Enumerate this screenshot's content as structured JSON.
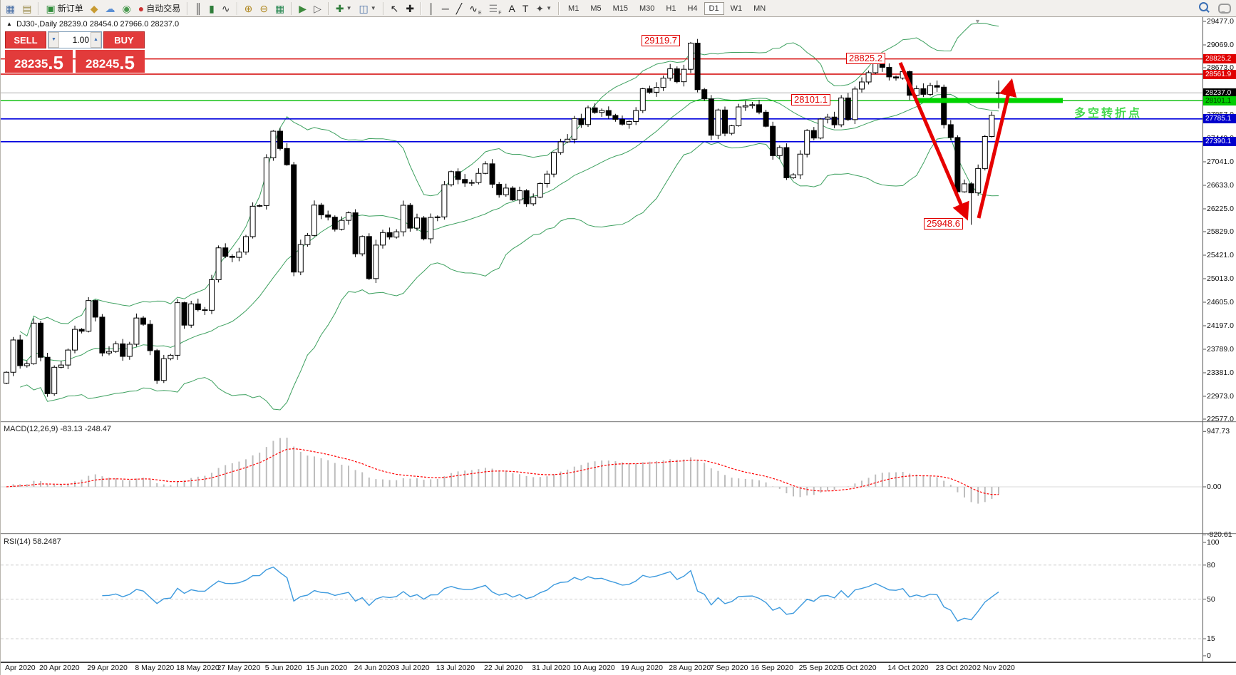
{
  "toolbar": {
    "new_order": "新订单",
    "autotrading": "自动交易",
    "timeframes": [
      "M1",
      "M5",
      "M15",
      "M30",
      "H1",
      "H4",
      "D1",
      "W1",
      "MN"
    ],
    "active_timeframe": "D1",
    "icons": [
      {
        "name": "new-chart-icon",
        "glyph": "▦",
        "color": "#4a6fa5"
      },
      {
        "name": "profiles-icon",
        "glyph": "▤",
        "color": "#9a8a4a"
      },
      {
        "name": "sep"
      },
      {
        "name": "new-order-icon",
        "glyph": "▣",
        "color": "#2f8d3a",
        "label_key": "new_order"
      },
      {
        "name": "trumpet-icon",
        "glyph": "◆",
        "color": "#c89b32"
      },
      {
        "name": "community-icon",
        "glyph": "☁",
        "color": "#5b8fd4"
      },
      {
        "name": "signals-icon",
        "glyph": "◉",
        "color": "#4a9a50"
      },
      {
        "name": "autotrading-icon",
        "glyph": "●",
        "color": "#cc3333",
        "label_key": "autotrading"
      },
      {
        "name": "sep"
      },
      {
        "name": "bar-chart-icon",
        "glyph": "║",
        "color": "#3a3a3a"
      },
      {
        "name": "candlestick-icon",
        "glyph": "▮",
        "color": "#2f7d3a"
      },
      {
        "name": "line-chart-icon",
        "glyph": "∿",
        "color": "#3a3a3a"
      },
      {
        "name": "sep"
      },
      {
        "name": "zoom-in-icon",
        "glyph": "⊕",
        "color": "#b08820"
      },
      {
        "name": "zoom-out-icon",
        "glyph": "⊖",
        "color": "#b08820"
      },
      {
        "name": "tile-windows-icon",
        "glyph": "▦",
        "color": "#2e8b57"
      },
      {
        "name": "sep"
      },
      {
        "name": "auto-scroll-icon",
        "glyph": "▶",
        "color": "#3c8a3c"
      },
      {
        "name": "chart-shift-icon",
        "glyph": "▷",
        "color": "#555555"
      },
      {
        "name": "sep"
      },
      {
        "name": "indicators-icon",
        "glyph": "✚",
        "color": "#2f7d3a",
        "dropdown": true
      },
      {
        "name": "templates-icon",
        "glyph": "◫",
        "color": "#4a6fa5",
        "dropdown": true
      },
      {
        "name": "sep"
      },
      {
        "name": "cursor-icon",
        "glyph": "↖",
        "color": "#222222"
      },
      {
        "name": "crosshair-icon",
        "glyph": "✚",
        "color": "#222222"
      },
      {
        "name": "sep"
      },
      {
        "name": "vertical-line-icon",
        "glyph": "│",
        "color": "#222222"
      },
      {
        "name": "horizontal-line-icon",
        "glyph": "─",
        "color": "#222222"
      },
      {
        "name": "trendline-icon",
        "glyph": "╱",
        "color": "#222222"
      },
      {
        "name": "waves-tool-icon",
        "glyph": "∿",
        "color": "#222222",
        "sub": "E"
      },
      {
        "name": "fibonacci-icon",
        "glyph": "☰",
        "color": "#888888",
        "sub": "F"
      },
      {
        "name": "text-icon",
        "glyph": "A",
        "color": "#222222"
      },
      {
        "name": "text-label-icon",
        "glyph": "T",
        "color": "#222222"
      },
      {
        "name": "arrows-icon",
        "glyph": "✦",
        "color": "#444444",
        "dropdown": true
      }
    ]
  },
  "symbol_bar": {
    "collapse_icon": "▲",
    "title": "DJ30-,Daily",
    "ohlc": "28239.0 28454.0 27966.0 28237.0"
  },
  "one_click": {
    "sell_label": "SELL",
    "buy_label": "BUY",
    "volume": "1.00",
    "sell_price_main": "28235",
    "sell_price_frac": ".5",
    "buy_price_main": "28245",
    "buy_price_frac": ".5"
  },
  "annotations": {
    "high_label": "29119.7",
    "peak_label": "28825.2",
    "pivot_label": "28101.1",
    "low_label": "25948.6",
    "pivot_text": "多空转折点"
  },
  "macd": {
    "label": "MACD(12,26,9) -83.13 -248.47",
    "ticks": [
      {
        "v": 947.73,
        "t": "947.73"
      },
      {
        "v": 0,
        "t": "0.00"
      },
      {
        "v": -820.61,
        "t": "-820.61"
      }
    ]
  },
  "rsi": {
    "label": "RSI(14) 58.2487",
    "ticks": [
      100,
      80,
      50,
      15,
      0
    ],
    "levels": [
      80,
      50,
      15
    ]
  },
  "chart_data": {
    "type": "candlestick",
    "symbol": "DJ30-",
    "period": "Daily",
    "price_axis_ticks": [
      29477.0,
      29069.0,
      28673.0,
      27857.0,
      27449.0,
      27041.0,
      26633.0,
      26225.0,
      25829.0,
      25421.0,
      25013.0,
      24605.0,
      24197.0,
      23789.0,
      23381.0,
      22973.0,
      22577.0
    ],
    "visible_price_range": [
      22577.0,
      29477.0
    ],
    "hlines": [
      {
        "price": 28825.2,
        "color": "#d40000",
        "width": 1.4,
        "badge": "28825.2",
        "badge_bg": "#e00000",
        "badge_fg": "#ffffff"
      },
      {
        "price": 28561.9,
        "color": "#d40000",
        "width": 1.4,
        "badge": "28561.9",
        "badge_bg": "#e00000",
        "badge_fg": "#ffffff"
      },
      {
        "price": 28237.0,
        "color": "#b0b0b0",
        "width": 1.0,
        "badge": "28237.0",
        "badge_bg": "#000000",
        "badge_fg": "#ffffff"
      },
      {
        "price": 28101.1,
        "color": "#00bb00",
        "width": 1.4,
        "badge": "28101.1",
        "badge_bg": "#00cc00",
        "badge_fg": "#003300"
      },
      {
        "price": 27785.1,
        "color": "#0000dd",
        "width": 1.6,
        "badge": "27785.1",
        "badge_bg": "#0000cc",
        "badge_fg": "#ffffff"
      },
      {
        "price": 27390.1,
        "color": "#0000dd",
        "width": 1.6,
        "badge": "27390.1",
        "badge_bg": "#0000cc",
        "badge_fg": "#ffffff"
      }
    ],
    "closes": [
      23390,
      23950,
      23504,
      23537,
      24242,
      23650,
      23018,
      23476,
      23515,
      23775,
      24134,
      24102,
      24634,
      24346,
      23724,
      23750,
      23883,
      23665,
      23876,
      24331,
      24222,
      23765,
      23248,
      23625,
      23685,
      24597,
      24207,
      24576,
      24474,
      24465,
      24995,
      25548,
      25401,
      25383,
      25475,
      25743,
      26270,
      26282,
      27111,
      27572,
      27272,
      26990,
      25128,
      25605,
      25763,
      26290,
      26120,
      26080,
      25871,
      26025,
      26156,
      25445,
      25745,
      25015,
      25596,
      25813,
      25735,
      25827,
      26287,
      25890,
      26067,
      25706,
      26075,
      26085,
      26643,
      26870,
      26735,
      26672,
      26681,
      26840,
      27006,
      26652,
      26470,
      26585,
      26379,
      26539,
      26313,
      26428,
      26664,
      26828,
      27202,
      27387,
      27433,
      27791,
      27687,
      27977,
      27897,
      27931,
      27845,
      27778,
      27693,
      27740,
      27930,
      28308,
      28248,
      28332,
      28492,
      28654,
      28430,
      28646,
      29100,
      28293,
      28133,
      27501,
      27940,
      27535,
      27666,
      27993,
      28015,
      28032,
      27902,
      27657,
      27148,
      27288,
      26763,
      26815,
      27174,
      27584,
      27453,
      27782,
      27817,
      27683,
      28149,
      27773,
      28303,
      28426,
      28587,
      28838,
      28680,
      28514,
      28494,
      28606,
      28195,
      28309,
      28211,
      28364,
      28336,
      27685,
      27463,
      26520,
      26659,
      26502,
      26925,
      27480,
      27848,
      28237
    ],
    "overrides": {
      "100": {
        "h": 29119.7
      },
      "127": {
        "h": 28825.2
      },
      "141": {
        "l": 25948.6
      },
      "145": {
        "o": 28239.0,
        "h": 28454.0,
        "l": 27966.0,
        "c": 28237.0
      }
    },
    "indicators": [
      {
        "name": "Bollinger Bands",
        "color": "#3da05f"
      },
      {
        "name": "MACD",
        "params": [
          12,
          26,
          9
        ],
        "main": -83.13,
        "signal": -248.47,
        "axis": [
          947.73,
          0.0,
          -820.61
        ]
      },
      {
        "name": "RSI",
        "params": [
          14
        ],
        "value": 58.2487,
        "axis": [
          100,
          80,
          50,
          15,
          0
        ]
      }
    ],
    "time_axis": [
      {
        "label": "Apr 2020",
        "bar": 0
      },
      {
        "label": "20 Apr 2020",
        "bar": 5
      },
      {
        "label": "29 Apr 2020",
        "bar": 12
      },
      {
        "label": "8 May 2020",
        "bar": 19
      },
      {
        "label": "18 May 2020",
        "bar": 25
      },
      {
        "label": "27 May 2020",
        "bar": 31
      },
      {
        "label": "5 Jun 2020",
        "bar": 38
      },
      {
        "label": "15 Jun 2020",
        "bar": 44
      },
      {
        "label": "24 Jun 2020",
        "bar": 51
      },
      {
        "label": "3 Jul 2020",
        "bar": 57
      },
      {
        "label": "13 Jul 2020",
        "bar": 63
      },
      {
        "label": "22 Jul 2020",
        "bar": 70
      },
      {
        "label": "31 Jul 2020",
        "bar": 77
      },
      {
        "label": "10 Aug 2020",
        "bar": 83
      },
      {
        "label": "19 Aug 2020",
        "bar": 90
      },
      {
        "label": "28 Aug 2020",
        "bar": 97
      },
      {
        "label": "7 Sep 2020",
        "bar": 103
      },
      {
        "label": "16 Sep 2020",
        "bar": 109
      },
      {
        "label": "25 Sep 2020",
        "bar": 116
      },
      {
        "label": "5 Oct 2020",
        "bar": 122
      },
      {
        "label": "14 Oct 2020",
        "bar": 129
      },
      {
        "label": "23 Oct 2020",
        "bar": 136
      },
      {
        "label": "2 Nov 2020",
        "bar": 142
      }
    ]
  }
}
